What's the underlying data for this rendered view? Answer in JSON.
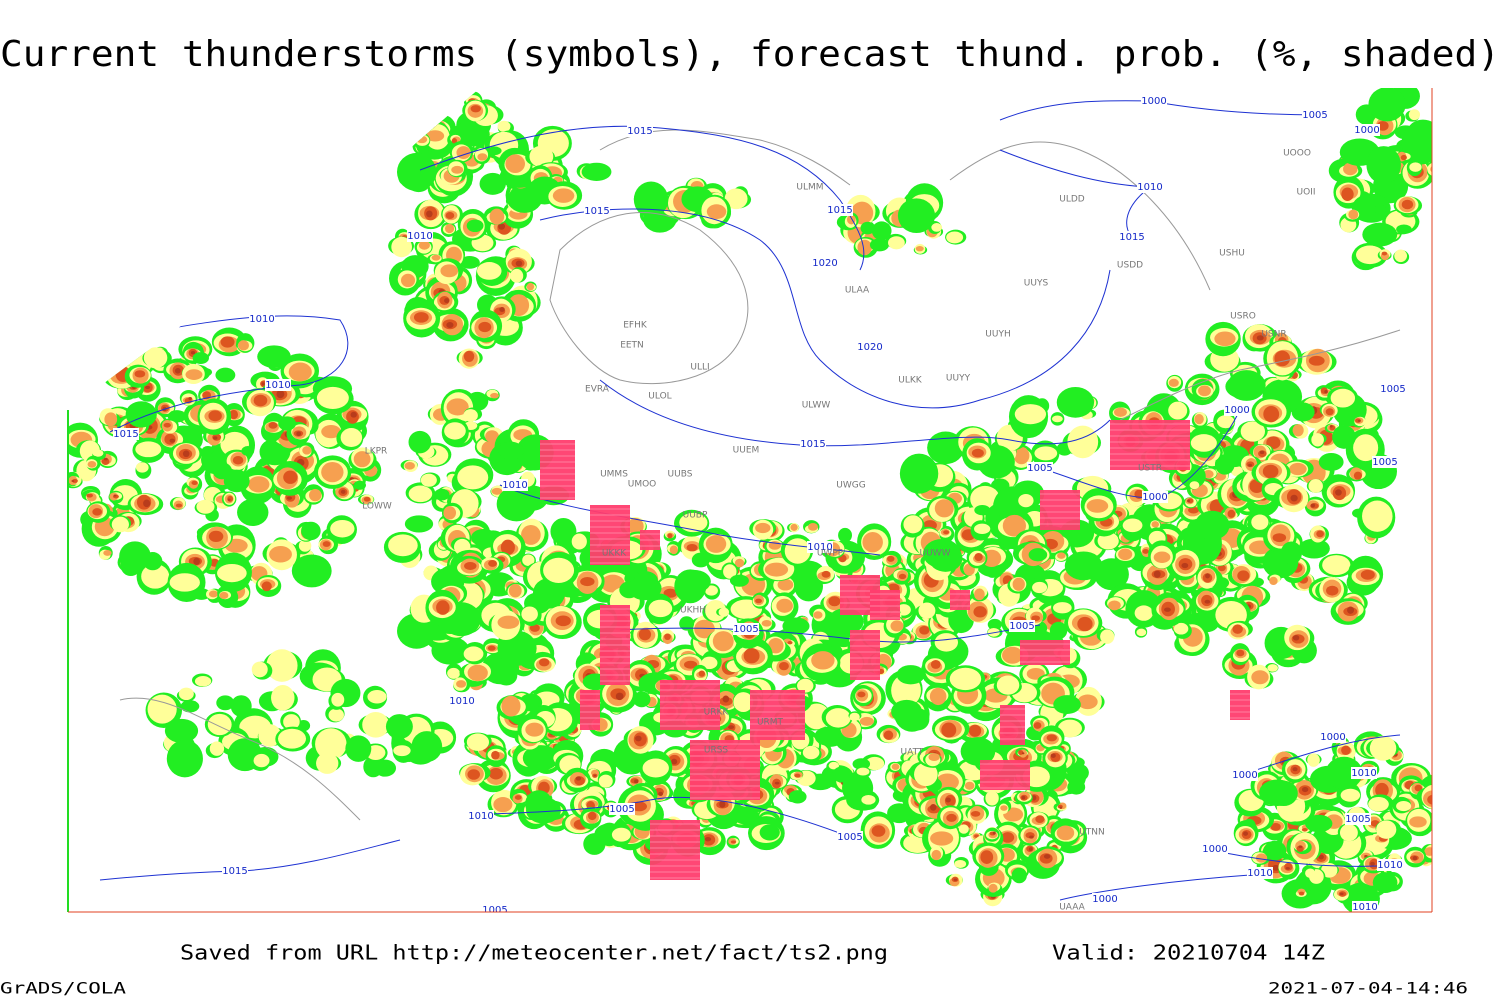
{
  "header": {
    "title": "Current thunderstorms (symbols), forecast thund. prob. (%, shaded)"
  },
  "footer": {
    "saved_from": "Saved from URL http://meteocenter.net/fact/ts2.png",
    "valid": "Valid: 20210704 14Z",
    "software": "GrADS/COLA",
    "timestamp": "2021-07-04-14:46"
  },
  "map": {
    "isobar_labels": [
      "1015",
      "1010",
      "1015",
      "1015",
      "1020",
      "1020",
      "1015",
      "1010",
      "1010",
      "1015",
      "1010",
      "1010",
      "1005",
      "1005",
      "1005",
      "1000",
      "1000",
      "1000",
      "1005",
      "1000",
      "1010",
      "1015",
      "1005",
      "1005",
      "1010",
      "1005",
      "1010",
      "1015",
      "1005",
      "1000",
      "1000",
      "1010",
      "1005",
      "1000",
      "1010",
      "1010",
      "1010",
      "1000",
      "1005"
    ],
    "station_labels": [
      "ULMM",
      "ULAA",
      "EFHK",
      "EETN",
      "ULLI",
      "EVRA",
      "ULOL",
      "ULKK",
      "UUYY",
      "UUYH",
      "UUYS",
      "ULDD",
      "USDD",
      "USHU",
      "UOOO",
      "UOII",
      "USRO",
      "USNR",
      "ULWW",
      "UUEM",
      "UMMS",
      "UMOO",
      "UUBS",
      "UWGG",
      "UUBP",
      "UKKK",
      "UWPP",
      "UUWW",
      "LKPR",
      "LOWW",
      "UKHH",
      "URKK",
      "URMT",
      "URSS",
      "UATT",
      "USTR",
      "UTNN",
      "UAAA"
    ]
  }
}
